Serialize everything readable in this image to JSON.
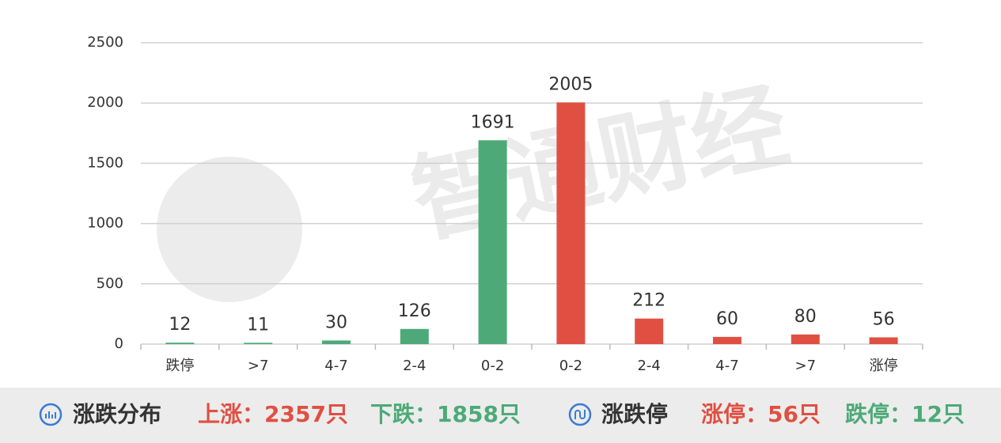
{
  "chart_data": {
    "type": "bar",
    "watermark": "智通财经",
    "categories": [
      "跌停",
      ">7",
      "4-7",
      "2-4",
      "0-2",
      "0-2",
      "2-4",
      "4-7",
      ">7",
      "涨停"
    ],
    "values": [
      12,
      11,
      30,
      126,
      1691,
      2005,
      212,
      60,
      80,
      56
    ],
    "colors": [
      "#4daa78",
      "#4daa78",
      "#4daa78",
      "#4daa78",
      "#4daa78",
      "#e05042",
      "#e05042",
      "#e05042",
      "#e05042",
      "#e05042"
    ],
    "ylim": [
      0,
      2500
    ],
    "yticks": [
      0,
      500,
      1000,
      1500,
      2000,
      2500
    ],
    "grid": true
  },
  "footer": {
    "distribution_title": "涨跌分布",
    "up": "上涨：2357只",
    "down": "下跌：1858只",
    "limit_title": "涨跌停",
    "limit_up": "涨停：56只",
    "limit_down": "跌停：12只"
  }
}
